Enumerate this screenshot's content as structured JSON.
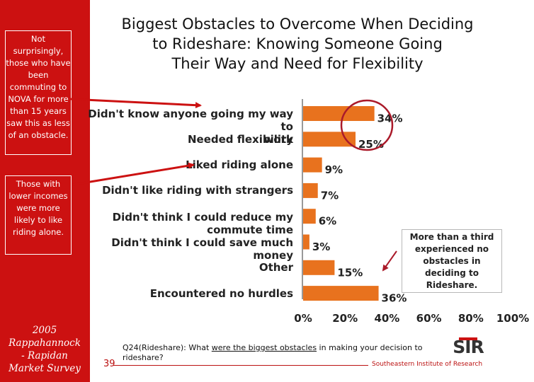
{
  "title_lines": [
    "Biggest Obstacles to Overcome When Deciding",
    "to Rideshare:  Knowing Someone Going",
    "Their Way and Need for Flexibility"
  ],
  "sidebar": {
    "note_top": "Not surprisingly, those who have been commuting to NOVA for more than 15 years saw this as less of an obstacle.",
    "note_mid": "Those with lower incomes were more likely to like riding alone.",
    "survey_lines": [
      "2005",
      "Rappahannock",
      "- Rapidan",
      "Market Survey"
    ]
  },
  "right_note": "More than a third experienced no obstacles in deciding to Rideshare.",
  "chart_data": {
    "type": "bar",
    "orientation": "horizontal",
    "categories": [
      "Didn't know anyone going my way to work",
      "Needed flexibility",
      "Liked riding alone",
      "Didn't like riding with strangers",
      "Didn't think I could reduce my commute time",
      "Didn't think I could save much money",
      "Other",
      "Encountered no hurdles"
    ],
    "category_lines": [
      [
        "Didn't know anyone going my way to",
        "work"
      ],
      [
        "Needed flexibility"
      ],
      [
        "Liked riding alone"
      ],
      [
        "Didn't like riding with strangers"
      ],
      [
        "Didn't think I could reduce my",
        "commute time"
      ],
      [
        "Didn't think I could save much",
        "money"
      ],
      [
        "Other"
      ],
      [
        "Encountered no hurdles"
      ]
    ],
    "values": [
      34,
      25,
      9,
      7,
      6,
      3,
      15,
      36
    ],
    "value_labels": [
      "34%",
      "25%",
      "9%",
      "7%",
      "6%",
      "3%",
      "15%",
      "36%"
    ],
    "xlim": [
      0,
      100
    ],
    "xticks": [
      "0%",
      "20%",
      "40%",
      "60%",
      "80%",
      "100%"
    ],
    "bar_color": "#e8721e",
    "highlight_color": "#aa1a2a",
    "highlighted": [
      0,
      1
    ]
  },
  "footer": {
    "page_number": "39",
    "question_prefix": "Q24(Rideshare): What ",
    "question_underlined": "were the biggest obstacles",
    "question_suffix": " in making your decision to rideshare?",
    "org": "Southeastern Institute of Research",
    "logo_text": "SIR"
  }
}
